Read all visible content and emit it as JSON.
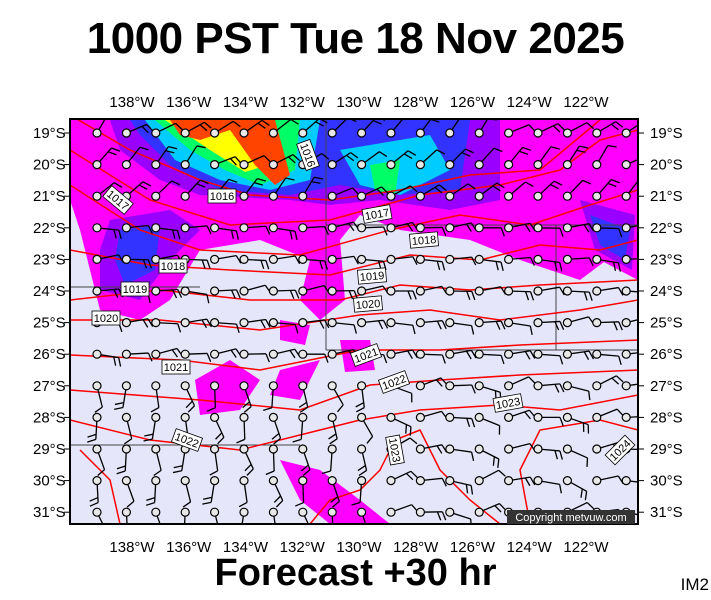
{
  "header": {
    "title": "1000 PST Tue 18 Nov 2025"
  },
  "footer": {
    "forecast": "Forecast +30 hr",
    "image_code": "IM2"
  },
  "map": {
    "background_color": "#e6e6fa",
    "isobar_color": "#ff0000",
    "longitude_labels": [
      "138°W",
      "136°W",
      "134°W",
      "132°W",
      "130°W",
      "128°W",
      "126°W",
      "124°W",
      "122°W"
    ],
    "latitude_labels": [
      "19°S",
      "20°S",
      "21°S",
      "22°S",
      "23°S",
      "24°S",
      "25°S",
      "26°S",
      "27°S",
      "28°S",
      "29°S",
      "30°S",
      "31°S"
    ],
    "isobar_labels": [
      "1016",
      "1016",
      "1017",
      "1017",
      "1018",
      "1018",
      "1019",
      "1019",
      "1020",
      "1020",
      "1021",
      "1021",
      "1022",
      "1022",
      "1023",
      "1023",
      "1024"
    ],
    "precip_colors": [
      "#ff00ff",
      "#9900ff",
      "#3333ff",
      "#00ccff",
      "#00ff66",
      "#ffff00",
      "#ff4400"
    ],
    "copyright": "Copyright metvuw.com"
  }
}
